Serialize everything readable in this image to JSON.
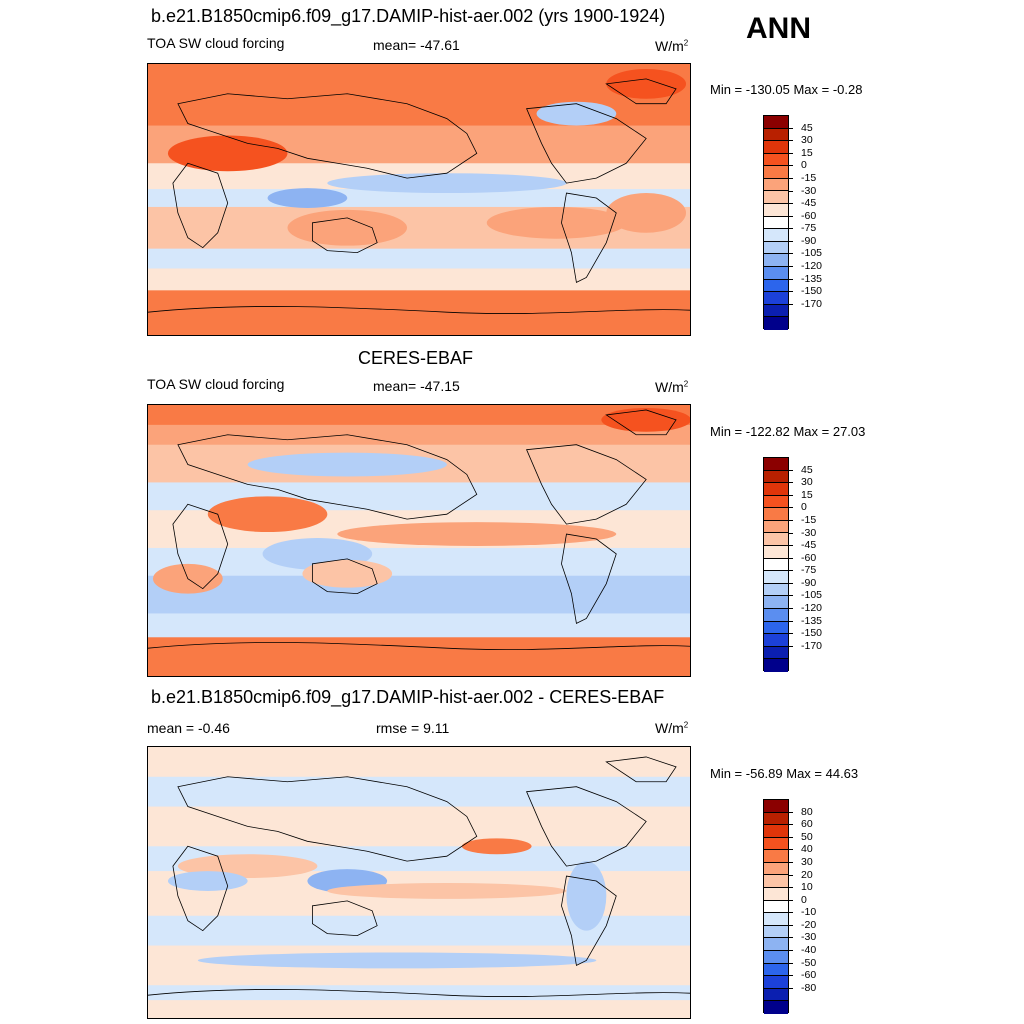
{
  "season": "ANN",
  "panels": [
    {
      "title": "b.e21.B1850cmip6.f09_g17.DAMIP-hist-aer.002 (yrs 1900-1924)",
      "left_label": "TOA SW cloud forcing",
      "center_label": "mean= -47.61",
      "units_base": "W/m",
      "units_exp": "2",
      "minmax": "Min = -130.05 Max =  -0.28",
      "colorbar": {
        "labels": [
          "45",
          "30",
          "15",
          "0",
          "-15",
          "-30",
          "-45",
          "-60",
          "-75",
          "-90",
          "-105",
          "-120",
          "-135",
          "-150",
          "-170"
        ],
        "colors": [
          "#8b0000",
          "#b82000",
          "#e0350a",
          "#f5521f",
          "#f97a45",
          "#fba37a",
          "#fcc4a6",
          "#fde6d6",
          "#ffffff",
          "#d5e7fb",
          "#b3cff7",
          "#8db3f2",
          "#5b8ef0",
          "#2c65ec",
          "#1c41d9",
          "#0b1fb0",
          "#00008b"
        ]
      },
      "map_key": "model"
    },
    {
      "title": "CERES-EBAF",
      "left_label": "TOA SW cloud forcing",
      "center_label": "mean= -47.15",
      "units_base": "W/m",
      "units_exp": "2",
      "minmax": "Min = -122.82 Max =  27.03",
      "colorbar": {
        "labels": [
          "45",
          "30",
          "15",
          "0",
          "-15",
          "-30",
          "-45",
          "-60",
          "-75",
          "-90",
          "-105",
          "-120",
          "-135",
          "-150",
          "-170"
        ],
        "colors": [
          "#8b0000",
          "#b82000",
          "#e0350a",
          "#f5521f",
          "#f97a45",
          "#fba37a",
          "#fcc4a6",
          "#fde6d6",
          "#ffffff",
          "#d5e7fb",
          "#b3cff7",
          "#8db3f2",
          "#5b8ef0",
          "#2c65ec",
          "#1c41d9",
          "#0b1fb0",
          "#00008b"
        ]
      },
      "map_key": "obs"
    },
    {
      "title": "b.e21.B1850cmip6.f09_g17.DAMIP-hist-aer.002 - CERES-EBAF",
      "left_label": "mean =  -0.46",
      "center_label": "rmse =   9.11",
      "units_base": "W/m",
      "units_exp": "2",
      "minmax": "Min = -56.89 Max =  44.63",
      "colorbar": {
        "labels": [
          "80",
          "60",
          "50",
          "40",
          "30",
          "20",
          "10",
          "0",
          "-10",
          "-20",
          "-30",
          "-40",
          "-50",
          "-60",
          "-80"
        ],
        "colors": [
          "#8b0000",
          "#b82000",
          "#e0350a",
          "#f5521f",
          "#f97a45",
          "#fba37a",
          "#fcc4a6",
          "#fde6d6",
          "#ffffff",
          "#d5e7fb",
          "#b3cff7",
          "#8db3f2",
          "#5b8ef0",
          "#2c65ec",
          "#1c41d9",
          "#0b1fb0",
          "#00008b"
        ]
      },
      "map_key": "diff"
    }
  ]
}
